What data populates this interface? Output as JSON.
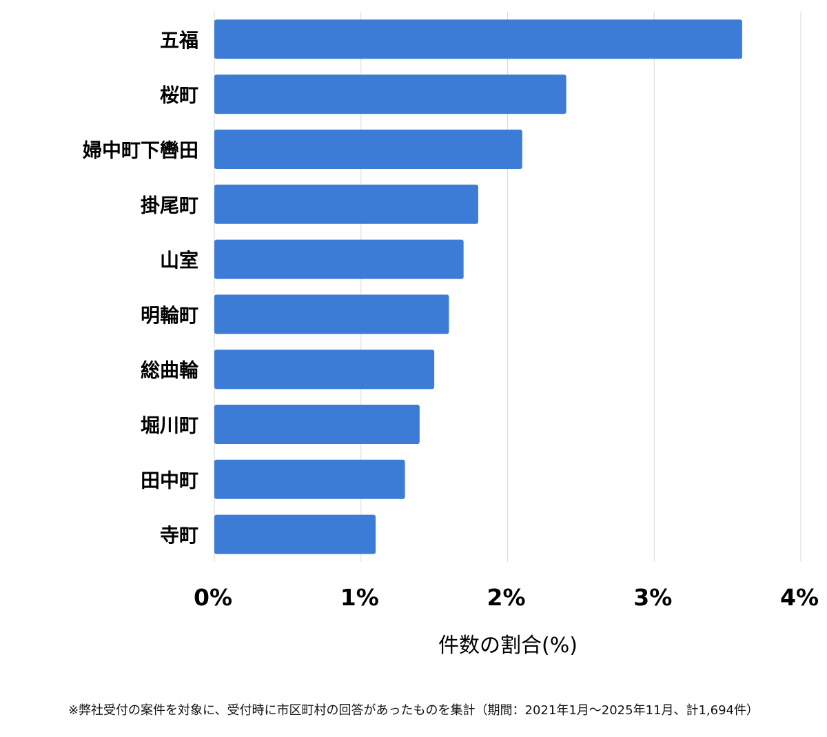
{
  "chart_data": {
    "type": "bar",
    "orientation": "horizontal",
    "categories": [
      "五福",
      "桜町",
      "婦中町下轡田",
      "掛尾町",
      "山室",
      "明輪町",
      "総曲輪",
      "堀川町",
      "田中町",
      "寺町"
    ],
    "values": [
      3.6,
      2.4,
      2.1,
      1.8,
      1.7,
      1.6,
      1.5,
      1.4,
      1.3,
      1.1
    ],
    "xlabel": "件数の割合(%)",
    "ylabel": "",
    "xlim": [
      0,
      4
    ],
    "x_ticks": [
      "0%",
      "1%",
      "2%",
      "3%",
      "4%"
    ],
    "grid": "vertical",
    "bar_color": "#3c7bd6"
  },
  "footnote": "※弊社受付の案件を対象に、受付時に市区町村の回答があったものを集計（期間：2021年1月～2025年11月、計1,694件）"
}
